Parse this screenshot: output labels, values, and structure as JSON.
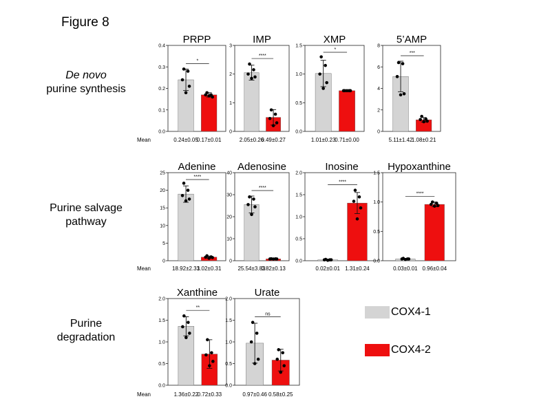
{
  "figure_title": "Figure 8",
  "rows": [
    {
      "label_lines": [
        "De novo",
        "purine synthesis"
      ]
    },
    {
      "label_lines": [
        "Purine salvage",
        "pathway"
      ]
    },
    {
      "label_lines": [
        "Purine",
        "degradation"
      ]
    }
  ],
  "legend": [
    {
      "label": "COX4-1",
      "color": "#d4d4d4"
    },
    {
      "label": "COX4-2",
      "color": "#ee0f0f"
    }
  ],
  "mean_label": "Mean",
  "chart_data": [
    {
      "type": "bar",
      "title": "PRPP",
      "categories": [
        "COX4-1",
        "COX4-2"
      ],
      "values": [
        0.24,
        0.17
      ],
      "errors": [
        0.05,
        0.01
      ],
      "points": [
        [
          0.29,
          0.28,
          0.24,
          0.21,
          0.18
        ],
        [
          0.18,
          0.17,
          0.17,
          0.16,
          0.165
        ]
      ],
      "ylim": [
        0,
        0.4
      ],
      "yticks": [
        "0.0",
        "0.1",
        "0.2",
        "0.3",
        "0.4"
      ],
      "significance": "*",
      "means": [
        "0.24±0.05",
        "0.17±0.01"
      ]
    },
    {
      "type": "bar",
      "title": "IMP",
      "categories": [
        "COX4-1",
        "COX4-2"
      ],
      "values": [
        2.05,
        0.49
      ],
      "errors": [
        0.26,
        0.27
      ],
      "points": [
        [
          2.35,
          2.15,
          2.0,
          1.9,
          1.85
        ],
        [
          0.75,
          0.6,
          0.45,
          0.3,
          0.2
        ]
      ],
      "ylim": [
        0,
        3
      ],
      "yticks": [
        "0",
        "1",
        "2",
        "3"
      ],
      "significance": "****",
      "means": [
        "2.05±0.26",
        "0.49±0.27"
      ]
    },
    {
      "type": "bar",
      "title": "XMP",
      "categories": [
        "COX4-1",
        "COX4-2"
      ],
      "values": [
        1.01,
        0.71
      ],
      "errors": [
        0.23,
        0.0
      ],
      "points": [
        [
          1.3,
          1.15,
          1.0,
          0.85,
          0.75
        ],
        [
          0.71,
          0.71,
          0.71,
          0.71,
          0.71
        ]
      ],
      "ylim": [
        0,
        1.5
      ],
      "yticks": [
        "0.0",
        "0.5",
        "1.0",
        "1.5"
      ],
      "significance": "*",
      "means": [
        "1.01±0.23",
        "0.71±0.00"
      ]
    },
    {
      "type": "bar",
      "title": "5’AMP",
      "categories": [
        "COX4-1",
        "COX4-2"
      ],
      "values": [
        5.11,
        1.08
      ],
      "errors": [
        1.42,
        0.21
      ],
      "points": [
        [
          6.4,
          6.3,
          5.1,
          3.5,
          3.4
        ],
        [
          1.4,
          1.15,
          1.1,
          0.95,
          0.9
        ]
      ],
      "ylim": [
        0,
        8
      ],
      "yticks": [
        "0",
        "2",
        "4",
        "6",
        "8"
      ],
      "significance": "***",
      "means": [
        "5.11±1.42",
        "1.08±0.21"
      ]
    },
    {
      "type": "bar",
      "title": "Adenine",
      "categories": [
        "COX4-1",
        "COX4-2"
      ],
      "values": [
        18.92,
        1.02
      ],
      "errors": [
        2.33,
        0.31
      ],
      "points": [
        [
          22.0,
          20.0,
          18.5,
          17.5,
          17.0
        ],
        [
          1.4,
          1.1,
          1.0,
          0.9,
          0.7
        ]
      ],
      "ylim": [
        0,
        25
      ],
      "yticks": [
        "0",
        "5",
        "10",
        "15",
        "20",
        "25"
      ],
      "significance": "****",
      "means": [
        "18.92±2.33",
        "1.02±0.31"
      ]
    },
    {
      "type": "bar",
      "title": "Adenosine",
      "categories": [
        "COX4-1",
        "COX4-2"
      ],
      "values": [
        25.54,
        0.82
      ],
      "errors": [
        3.83,
        0.13
      ],
      "points": [
        [
          29.0,
          28.0,
          25.5,
          24.5,
          21.0
        ],
        [
          0.9,
          0.85,
          0.8,
          0.8,
          0.75
        ]
      ],
      "ylim": [
        0,
        40
      ],
      "yticks": [
        "0",
        "10",
        "20",
        "30",
        "40"
      ],
      "significance": "****",
      "means": [
        "25.54±3.83",
        "0.82±0.13"
      ]
    },
    {
      "type": "bar",
      "title": "Inosine",
      "categories": [
        "COX4-1",
        "COX4-2"
      ],
      "values": [
        0.02,
        1.31
      ],
      "errors": [
        0.01,
        0.24
      ],
      "points": [
        [
          0.03,
          0.02,
          0.02,
          0.02,
          0.01
        ],
        [
          1.6,
          1.45,
          1.35,
          1.2,
          0.95
        ]
      ],
      "ylim": [
        0,
        2.0
      ],
      "yticks": [
        "0.0",
        "0.5",
        "1.0",
        "1.5",
        "2.0"
      ],
      "significance": "****",
      "means": [
        "0.02±0.01",
        "1.31±0.24"
      ]
    },
    {
      "type": "bar",
      "title": "Hypoxanthine",
      "categories": [
        "COX4-1",
        "COX4-2"
      ],
      "values": [
        0.03,
        0.96
      ],
      "errors": [
        0.01,
        0.04
      ],
      "points": [
        [
          0.04,
          0.03,
          0.03,
          0.03,
          0.02
        ],
        [
          1.0,
          0.98,
          0.96,
          0.94,
          0.93
        ]
      ],
      "ylim": [
        0,
        1.5
      ],
      "yticks": [
        "0.0",
        "0.5",
        "1.0",
        "1.5"
      ],
      "significance": "****",
      "means": [
        "0.03±0.01",
        "0.96±0.04"
      ]
    },
    {
      "type": "bar",
      "title": "Xanthine",
      "categories": [
        "COX4-1",
        "COX4-2"
      ],
      "values": [
        1.36,
        0.72
      ],
      "errors": [
        0.22,
        0.33
      ],
      "points": [
        [
          1.6,
          1.45,
          1.35,
          1.2,
          1.1
        ],
        [
          1.05,
          0.75,
          0.7,
          0.55,
          0.45
        ]
      ],
      "ylim": [
        0,
        2.0
      ],
      "yticks": [
        "0.0",
        "0.5",
        "1.0",
        "1.5",
        "2.0"
      ],
      "significance": "**",
      "means": [
        "1.36±0.22",
        "0.72±0.33"
      ]
    },
    {
      "type": "bar",
      "title": "Urate",
      "categories": [
        "COX4-1",
        "COX4-2"
      ],
      "values": [
        0.97,
        0.58
      ],
      "errors": [
        0.46,
        0.25
      ],
      "points": [
        [
          1.45,
          1.2,
          1.0,
          0.6,
          0.5
        ],
        [
          0.82,
          0.75,
          0.6,
          0.45,
          0.3
        ]
      ],
      "ylim": [
        0,
        2.0
      ],
      "yticks": [
        "0.0",
        "0.5",
        "1.0",
        "1.5",
        "2.0"
      ],
      "significance": "ns",
      "means": [
        "0.97±0.46",
        "0.58±0.25"
      ]
    }
  ]
}
